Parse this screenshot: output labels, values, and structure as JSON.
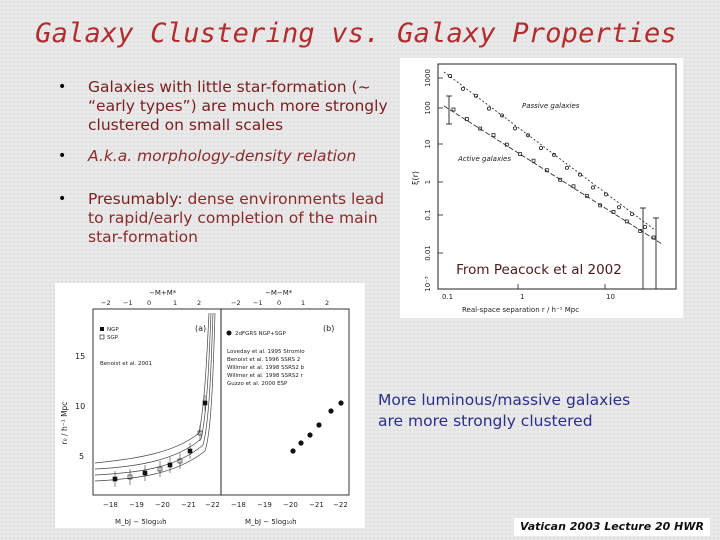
{
  "slide": {
    "title": "Galaxy Clustering vs. Galaxy Properties",
    "bullets": [
      {
        "marker": "•",
        "text": "Galaxies with little star-formation (~ “early types”) are much more strongly clustered on small scales"
      },
      {
        "marker": "•",
        "text": "A.k.a. morphology-density relation"
      },
      {
        "marker": "•",
        "prefix": "Presumably:",
        "text": " dense environments lead to rapid/early completion of the main star-formation"
      }
    ],
    "source_label": "From Peacock et al 2002",
    "caption": "More luminous/massive galaxies are more strongly clustered",
    "footer": "Vatican 2003 Lecture 20 HWR"
  },
  "figure_top": {
    "ylabel": "ξ(r)",
    "xlabel": "Real-space separation r / h⁻¹ Mpc",
    "y_ticks": [
      "1000",
      "100",
      "10",
      "1",
      "0.1",
      "0.01",
      "10⁻³"
    ],
    "x_ticks": [
      "0.1",
      "1",
      "10"
    ],
    "series_labels": [
      "Passive galaxies",
      "Active galaxies"
    ]
  },
  "figure_bottom": {
    "top_axis_label_left": "−M+M*",
    "top_axis_label_right": "−M−M*",
    "top_ticks_left": [
      "−2",
      "−1",
      "0",
      "1",
      "2"
    ],
    "top_ticks_right": [
      "−2",
      "−1",
      "0",
      "1",
      "2"
    ],
    "y_ticks": [
      "15",
      "10",
      "5"
    ],
    "ylabel": "r₀ / h⁻¹ Mpc",
    "x_ticks_left": [
      "−18",
      "−19",
      "−20",
      "−21",
      "−22"
    ],
    "x_ticks_right": [
      "−18",
      "−19",
      "−20",
      "−21",
      "−22"
    ],
    "xlabel_left": "M_bJ − 5log₁₀h",
    "xlabel_right": "M_bJ − 5log₁₀h",
    "panel_a_label": "(a)",
    "panel_b_label": "(b)",
    "legend_left": [
      "NGP",
      "SGP"
    ],
    "benoist_label": "Benoist et al. 2001",
    "legend_right": [
      "2dFGRS NGP+SGP",
      "Loveday et al. 1995 Stromlo",
      "Benoist et al. 1996 SSRS 2",
      "Willmer et al. 1998 SSRS2 b",
      "Willmer et al. 1998 SSRS2 r",
      "Guzzo et al. 2000 ESP"
    ]
  }
}
